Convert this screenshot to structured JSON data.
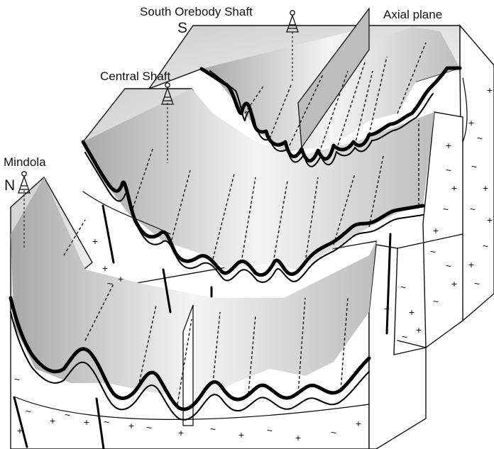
{
  "labels": {
    "south_orebody_shaft": "South Orebody Shaft",
    "axial_plane": "Axial plane",
    "central_shaft": "Central Shaft",
    "mindola": "Mindola",
    "compass_north": "N",
    "compass_south": "S"
  },
  "colors": {
    "ink": "#111111",
    "shade_dark": "#9a9a9a",
    "shade_light": "#f6f6f6",
    "face": "#ffffff"
  },
  "icons": {
    "shaft_headframe": "headframe-icon"
  },
  "symbols": {
    "basement_plus": "+",
    "basement_tilde": "~"
  }
}
